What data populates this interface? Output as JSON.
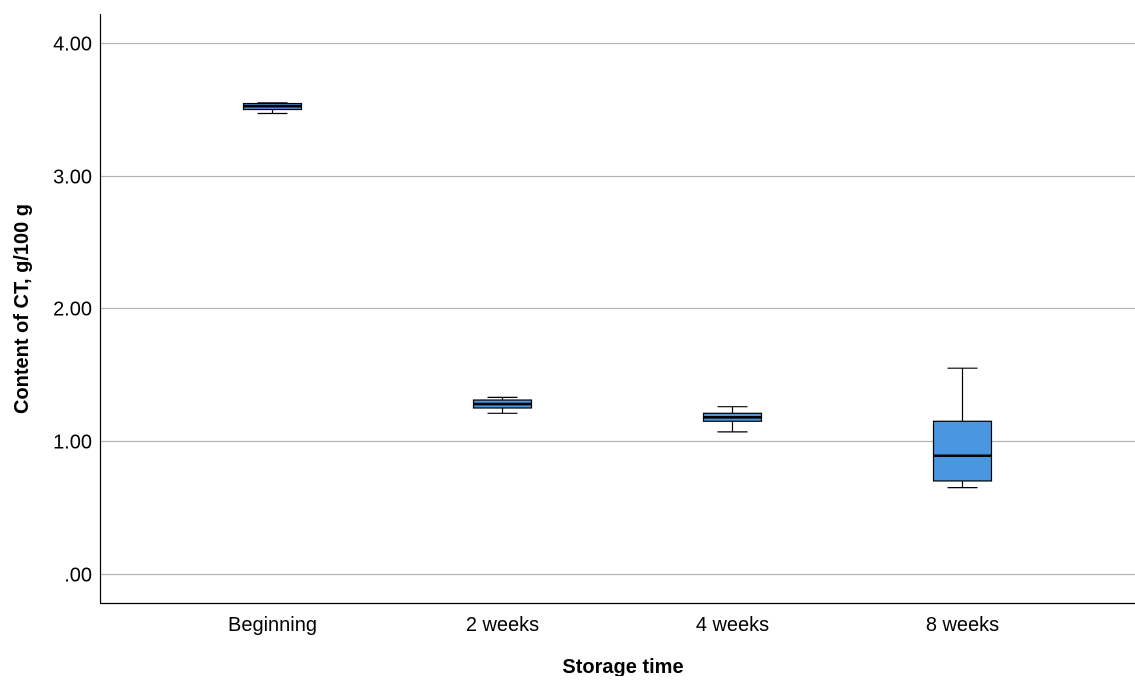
{
  "chart_data": {
    "type": "boxplot",
    "categories": [
      "Beginning",
      "2 weeks",
      "4 weeks",
      "8 weeks"
    ],
    "boxes": [
      {
        "category": "Beginning",
        "min": 3.47,
        "q1": 3.5,
        "median": 3.525,
        "q3": 3.545,
        "max": 3.55
      },
      {
        "category": "2 weeks",
        "min": 1.21,
        "q1": 1.25,
        "median": 1.28,
        "q3": 1.31,
        "max": 1.33
      },
      {
        "category": "4 weeks",
        "min": 1.07,
        "q1": 1.15,
        "median": 1.18,
        "q3": 1.21,
        "max": 1.26
      },
      {
        "category": "8 weeks",
        "min": 0.65,
        "q1": 0.7,
        "median": 0.89,
        "q3": 1.15,
        "max": 1.55
      }
    ],
    "y_ticks": [
      0,
      1,
      2,
      3,
      4
    ],
    "y_tick_labels": [
      ".00",
      "1.00",
      "2.00",
      "3.00",
      "4.00"
    ],
    "ylim": [
      -0.22,
      4.22
    ],
    "xlabel": "Storage time",
    "ylabel": "Content of CT, g/100 g",
    "grid": "horizontal",
    "colors": {
      "box_fill": "#4a96e1",
      "box_stroke": "#000000",
      "grid": "#b4b4b4",
      "axis": "#000000"
    }
  }
}
